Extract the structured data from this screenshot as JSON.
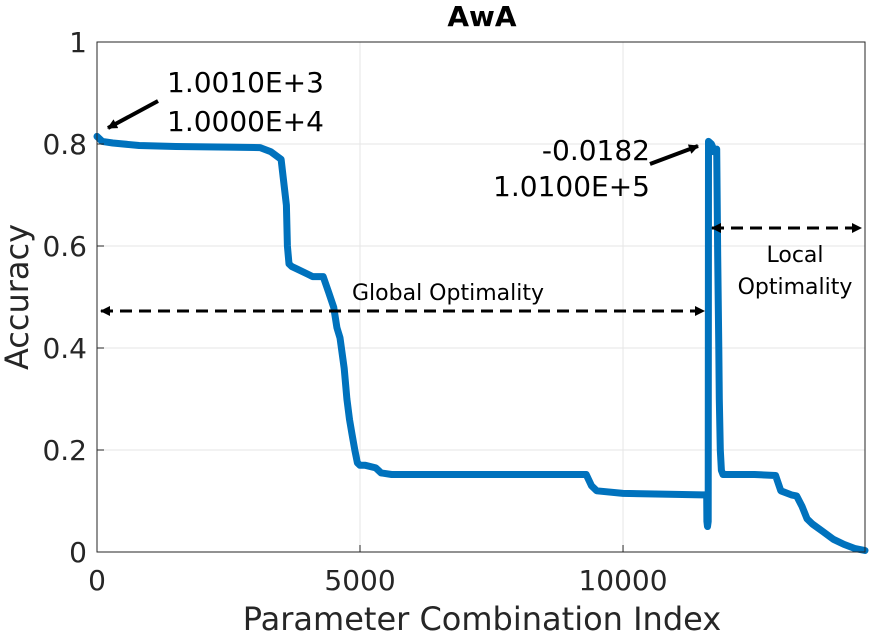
{
  "chart_data": {
    "type": "line",
    "title": "AwA",
    "xlabel": "Parameter Combination Index",
    "ylabel": "Accuracy",
    "xlim": [
      0,
      14600
    ],
    "ylim": [
      0,
      1
    ],
    "x_ticks": [
      0,
      5000,
      10000
    ],
    "x_tick_labels": [
      "0",
      "5000",
      "10000"
    ],
    "y_ticks": [
      0,
      0.2,
      0.4,
      0.6,
      0.8,
      1
    ],
    "y_tick_labels": [
      "0",
      "0.2",
      "0.4",
      "0.6",
      "0.8",
      "1"
    ],
    "grid": true,
    "series_color": "#0072BD",
    "series": [
      {
        "name": "Accuracy",
        "x": [
          0,
          100,
          300,
          800,
          1500,
          2500,
          3100,
          3300,
          3500,
          3600,
          3620,
          3650,
          3700,
          3800,
          4000,
          4100,
          4300,
          4400,
          4500,
          4560,
          4620,
          4700,
          4750,
          4800,
          4850,
          4900,
          4950,
          5000,
          5100,
          5300,
          5400,
          5600,
          6500,
          8000,
          9300,
          9400,
          9500,
          10000,
          11000,
          11500,
          11590,
          11595,
          11605,
          11620,
          11625,
          11680,
          11700,
          11710,
          11780,
          11800,
          11820,
          11830,
          11840,
          11850,
          11870,
          11900,
          12000,
          12500,
          12900,
          13000,
          13200,
          13300,
          13400,
          13500,
          13600,
          13800,
          14000,
          14200,
          14400,
          14600
        ],
        "y": [
          0.815,
          0.805,
          0.802,
          0.797,
          0.795,
          0.794,
          0.793,
          0.785,
          0.77,
          0.68,
          0.6,
          0.565,
          0.56,
          0.555,
          0.545,
          0.54,
          0.54,
          0.51,
          0.48,
          0.44,
          0.42,
          0.36,
          0.3,
          0.26,
          0.23,
          0.2,
          0.175,
          0.17,
          0.17,
          0.165,
          0.155,
          0.152,
          0.152,
          0.152,
          0.152,
          0.13,
          0.12,
          0.115,
          0.113,
          0.112,
          0.112,
          0.06,
          0.05,
          0.06,
          0.805,
          0.8,
          0.795,
          0.785,
          0.79,
          0.58,
          0.4,
          0.3,
          0.25,
          0.2,
          0.16,
          0.152,
          0.152,
          0.152,
          0.15,
          0.12,
          0.112,
          0.11,
          0.09,
          0.065,
          0.055,
          0.04,
          0.025,
          0.015,
          0.007,
          0.003
        ]
      }
    ],
    "annotations": [
      {
        "line1": "1.0010E+3",
        "line2": "1.0000E+4"
      },
      {
        "line1": "-0.0182",
        "line2": "1.0100E+5"
      },
      {
        "label": "Global Optimality"
      },
      {
        "line1": "Local",
        "line2": "Optimality"
      }
    ]
  }
}
